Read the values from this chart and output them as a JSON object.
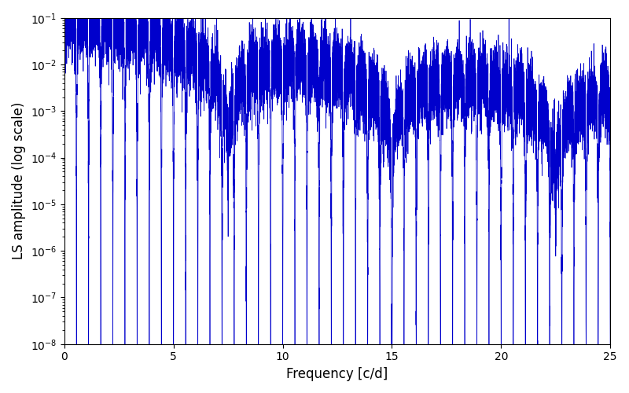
{
  "xlabel": "Frequency [c/d]",
  "ylabel": "LS amplitude (log scale)",
  "xlim": [
    0,
    25
  ],
  "ylim": [
    1e-08,
    0.1
  ],
  "line_color": "#0000cc",
  "line_width": 0.5,
  "figsize": [
    8.0,
    5.0
  ],
  "dpi": 100,
  "freq_min": 0.0,
  "freq_max": 25.0,
  "n_points": 15000,
  "background_color": "#ffffff",
  "seed": 12345
}
